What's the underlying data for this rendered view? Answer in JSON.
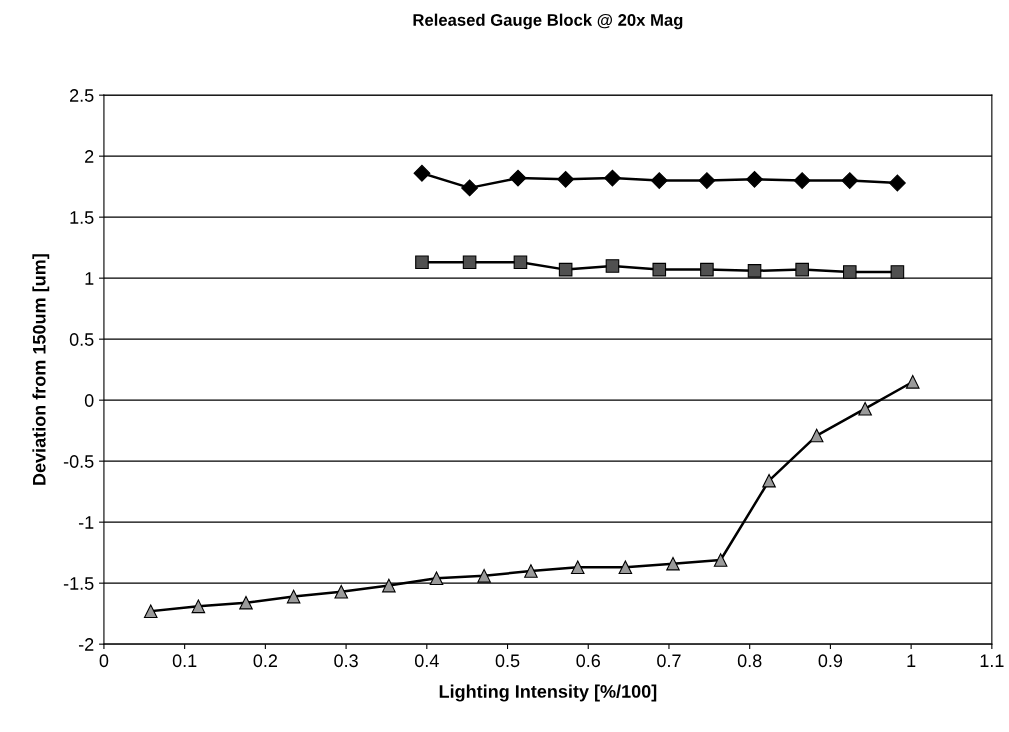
{
  "chart_data": {
    "type": "line",
    "title": "Released Gauge Block @ 20x Mag",
    "xlabel": "Lighting Intensity [%/100]",
    "ylabel": "Deviation from 150um [um]",
    "xlim": [
      0,
      1.1
    ],
    "xticks": [
      0,
      0.1,
      0.2,
      0.3,
      0.4,
      0.5,
      0.6,
      0.7,
      0.8,
      0.9,
      1,
      1.1
    ],
    "ylim": [
      -2,
      2.5
    ],
    "yticks": [
      -2,
      -1.5,
      -1,
      -0.5,
      0,
      0.5,
      1,
      1.5,
      2,
      2.5
    ],
    "grid": "y",
    "series": [
      {
        "color": "#000000",
        "marker": "diamond",
        "x": [
          0.394,
          0.453,
          0.513,
          0.572,
          0.63,
          0.688,
          0.747,
          0.806,
          0.865,
          0.924,
          0.983
        ],
        "values": [
          1.86,
          1.74,
          1.82,
          1.81,
          1.82,
          1.8,
          1.8,
          1.81,
          1.8,
          1.8,
          1.78
        ]
      },
      {
        "color": "#505050",
        "marker": "square",
        "x": [
          0.394,
          0.453,
          0.516,
          0.572,
          0.63,
          0.688,
          0.747,
          0.806,
          0.865,
          0.924,
          0.983
        ],
        "values": [
          1.13,
          1.13,
          1.13,
          1.07,
          1.1,
          1.07,
          1.07,
          1.06,
          1.07,
          1.05,
          1.05
        ]
      },
      {
        "color": "#9a9a9a",
        "marker": "triangle",
        "x": [
          0.058,
          0.117,
          0.176,
          0.235,
          0.294,
          0.353,
          0.412,
          0.471,
          0.529,
          0.587,
          0.646,
          0.705,
          0.764,
          0.824,
          0.883,
          0.943,
          1.002
        ],
        "values": [
          -1.73,
          -1.69,
          -1.66,
          -1.61,
          -1.57,
          -1.52,
          -1.46,
          -1.44,
          -1.4,
          -1.37,
          -1.37,
          -1.34,
          -1.31,
          -0.66,
          -0.29,
          -0.07,
          0.15
        ]
      }
    ]
  }
}
